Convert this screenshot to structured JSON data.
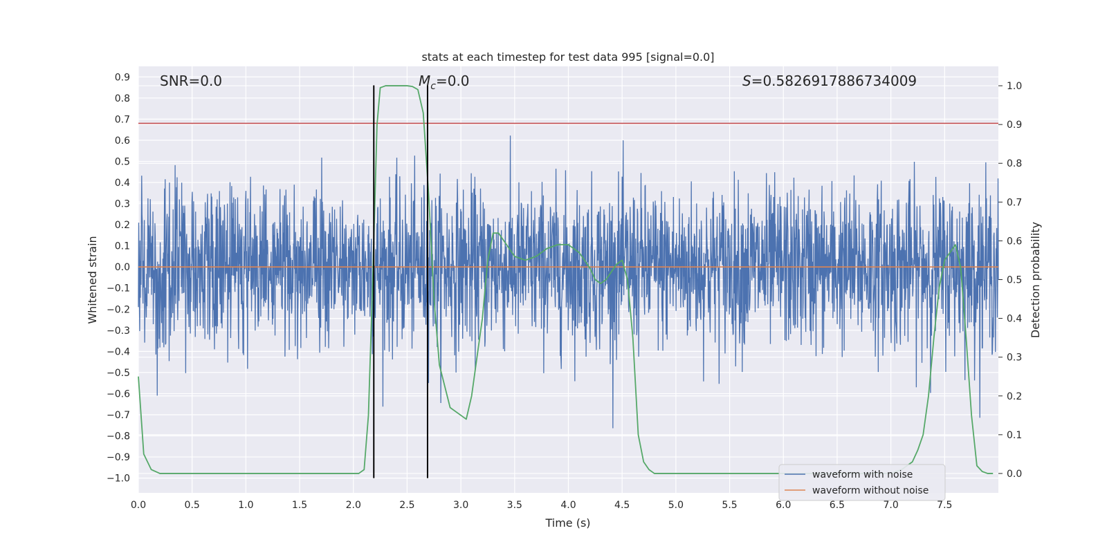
{
  "chart_data": {
    "type": "line",
    "title": "stats at each timestep for test data 995 [signal=0.0]",
    "xlabel": "Time (s)",
    "ylabel_left": "Whitened strain",
    "ylabel_right": "Detection probability",
    "xlim": [
      0.0,
      8.0
    ],
    "ylim_left": [
      -1.07,
      0.95
    ],
    "ylim_right": [
      -0.05,
      1.05
    ],
    "xticks": [
      "0.0",
      "0.5",
      "1.0",
      "1.5",
      "2.0",
      "2.5",
      "3.0",
      "3.5",
      "4.0",
      "4.5",
      "5.0",
      "5.5",
      "6.0",
      "6.5",
      "7.0",
      "7.5"
    ],
    "yticks_left": [
      "0.9",
      "0.8",
      "0.7",
      "0.6",
      "0.5",
      "0.4",
      "0.3",
      "0.2",
      "0.1",
      "0.0",
      "−0.1",
      "−0.2",
      "−0.3",
      "−0.4",
      "−0.5",
      "−0.6",
      "−0.7",
      "−0.8",
      "−0.9",
      "−1.0"
    ],
    "yticks_right": [
      "1.0",
      "0.9",
      "0.8",
      "0.7",
      "0.6",
      "0.5",
      "0.4",
      "0.3",
      "0.2",
      "0.1",
      "0.0"
    ],
    "grid": true,
    "legend_position": "lower-right",
    "annotations": {
      "snr": "SNR=0.0",
      "mc_symbol": "M",
      "mc_subscript": "c",
      "mc_value": "=0.0",
      "s_symbol": "S",
      "s_value": "=0.5826917886734009"
    },
    "series": [
      {
        "name": "waveform with noise",
        "axis": "left",
        "color": "#4c72b0",
        "note_envelope": "dense noise, typical band ±0.3, peaks to about ±0.85"
      },
      {
        "name": "waveform without noise",
        "axis": "left",
        "color": "#dd8452",
        "y_constant": 0.0
      },
      {
        "axis": "right",
        "color": "#55a868",
        "x": [
          0.0,
          0.05,
          0.12,
          0.2,
          0.3,
          0.5,
          1.0,
          1.5,
          2.0,
          2.05,
          2.1,
          2.14,
          2.18,
          2.22,
          2.25,
          2.3,
          2.4,
          2.5,
          2.55,
          2.6,
          2.65,
          2.7,
          2.75,
          2.8,
          2.9,
          3.0,
          3.05,
          3.1,
          3.15,
          3.2,
          3.25,
          3.3,
          3.35,
          3.4,
          3.45,
          3.5,
          3.6,
          3.7,
          3.8,
          3.9,
          4.0,
          4.1,
          4.2,
          4.25,
          4.3,
          4.35,
          4.4,
          4.45,
          4.5,
          4.55,
          4.6,
          4.65,
          4.7,
          4.75,
          4.8,
          5.0,
          5.5,
          6.0,
          6.5,
          7.0,
          7.1,
          7.2,
          7.25,
          7.3,
          7.35,
          7.4,
          7.45,
          7.5,
          7.55,
          7.6,
          7.65,
          7.7,
          7.75,
          7.8,
          7.85,
          7.9,
          7.95
        ],
        "y": [
          0.25,
          0.05,
          0.01,
          0.0,
          0.0,
          0.0,
          0.0,
          0.0,
          0.0,
          0.0,
          0.01,
          0.15,
          0.5,
          0.9,
          0.995,
          1.0,
          1.0,
          1.0,
          0.998,
          0.99,
          0.93,
          0.72,
          0.45,
          0.28,
          0.17,
          0.15,
          0.14,
          0.2,
          0.3,
          0.4,
          0.55,
          0.62,
          0.62,
          0.6,
          0.58,
          0.56,
          0.55,
          0.56,
          0.58,
          0.59,
          0.59,
          0.57,
          0.53,
          0.5,
          0.49,
          0.5,
          0.52,
          0.54,
          0.55,
          0.5,
          0.35,
          0.1,
          0.03,
          0.01,
          0.0,
          0.0,
          0.0,
          0.0,
          0.0,
          0.0,
          0.01,
          0.03,
          0.06,
          0.1,
          0.2,
          0.35,
          0.48,
          0.55,
          0.57,
          0.59,
          0.53,
          0.35,
          0.15,
          0.02,
          0.005,
          0.0,
          0.0
        ]
      }
    ],
    "horizontal_lines": [
      {
        "axis": "left",
        "y": 0.68,
        "color": "#c44e52"
      }
    ],
    "vertical_lines": [
      {
        "x": 2.19,
        "ymin": -1.0,
        "ymax": 0.86,
        "color": "#000000"
      },
      {
        "x": 2.69,
        "ymin": -1.0,
        "ymax": 0.86,
        "color": "#000000"
      }
    ],
    "colors": {
      "plot_background": "#eaeaf2",
      "grid": "#ffffff",
      "text": "#262626"
    }
  }
}
